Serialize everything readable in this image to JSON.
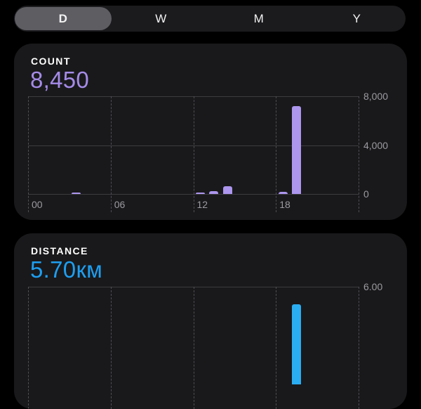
{
  "segmented_control": {
    "options": [
      {
        "label": "D",
        "selected": true
      },
      {
        "label": "W",
        "selected": false
      },
      {
        "label": "M",
        "selected": false
      },
      {
        "label": "Y",
        "selected": false
      }
    ]
  },
  "count_card": {
    "title": "COUNT",
    "value": "8,450",
    "value_color": "#a58be8",
    "bar_color": "#ac96ee",
    "chart_data": {
      "type": "bar",
      "x_unit": "hour_of_day",
      "values": [
        0,
        0,
        0,
        90,
        0,
        0,
        0,
        0,
        0,
        0,
        0,
        0,
        140,
        230,
        630,
        0,
        0,
        0,
        150,
        7210,
        0,
        0,
        0,
        0
      ],
      "x_ticks": [
        {
          "label": "00",
          "hour": 0
        },
        {
          "label": "06",
          "hour": 6
        },
        {
          "label": "12",
          "hour": 12
        },
        {
          "label": "18",
          "hour": 18
        }
      ],
      "y_ticks": [
        {
          "label": "0",
          "value": 0
        },
        {
          "label": "4,000",
          "value": 4000
        },
        {
          "label": "8,000",
          "value": 8000
        }
      ],
      "ylim": [
        0,
        8000
      ],
      "legend": "none",
      "grid": "horizontal-solid, vertical-dashed"
    }
  },
  "distance_card": {
    "title": "DISTANCE",
    "value": "5.70",
    "unit": "км",
    "value_color": "#1e9ef0",
    "bar_color": "#2badf2",
    "chart_data": {
      "type": "bar",
      "x_unit": "hour_of_day",
      "values": [
        0,
        0,
        0,
        0,
        0,
        0,
        0,
        0,
        0,
        0,
        0,
        0,
        0,
        0,
        0,
        0,
        0,
        0,
        0,
        4.9,
        0,
        0,
        0,
        0
      ],
      "x_ticks": [],
      "y_ticks": [
        {
          "label": "6.00",
          "value": 6
        }
      ],
      "ylim": [
        0,
        6
      ],
      "legend": "none",
      "grid": "horizontal-solid, vertical-dashed",
      "note_visible": "chart partially cut off at bottom of viewport"
    }
  }
}
